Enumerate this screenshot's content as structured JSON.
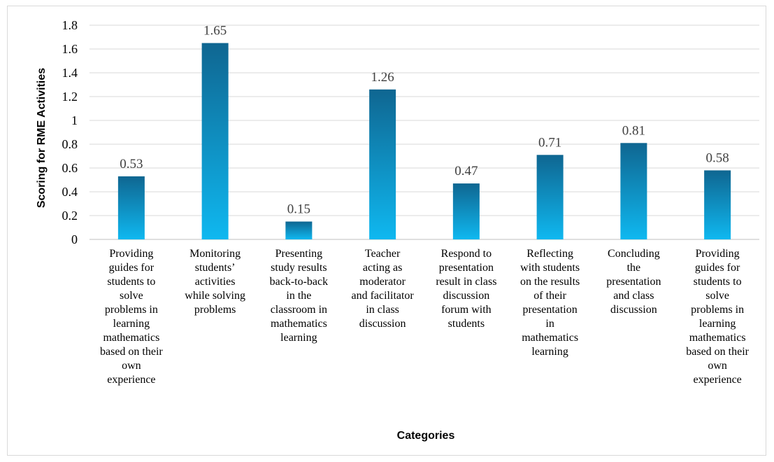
{
  "chart_data": {
    "type": "bar",
    "title": "",
    "xlabel": "Categories",
    "ylabel": "Scoring for RME Activities",
    "ylim": [
      0,
      1.8
    ],
    "yticks": [
      "0",
      "0.2",
      "0.4",
      "0.6",
      "0.8",
      "1",
      "1.2",
      "1.4",
      "1.6",
      "1.8"
    ],
    "grid": true,
    "legend": "none",
    "categories": [
      "Providing guides for students to solve problems in learning mathematics based on their own experience",
      "Monitoring students’ activities while solving problems",
      "Presenting study results back-to-back in the classroom in mathematics learning",
      "Teacher acting as moderator and facilitator in class discussion",
      "Respond to presentation result in class discussion forum with students",
      "Reflecting with students on the results of their presentation in mathematics learning",
      "Concluding the presentation and class discussion",
      "Providing guides for students to solve problems in learning mathematics based on their own experience"
    ],
    "category_lines": [
      [
        "Providing",
        "guides for",
        "students to",
        "solve",
        "problems in",
        "learning",
        "mathematics",
        "based on their",
        "own",
        "experience"
      ],
      [
        "Monitoring",
        "students’",
        "activities",
        "while solving",
        "problems"
      ],
      [
        "Presenting",
        "study results",
        "back-to-back",
        "in the",
        "classroom in",
        "mathematics",
        "learning"
      ],
      [
        "Teacher",
        "acting as",
        "moderator",
        "and facilitator",
        "in class",
        "discussion"
      ],
      [
        "Respond to",
        "presentation",
        "result in class",
        "discussion",
        "forum with",
        "students"
      ],
      [
        "Reflecting",
        "with students",
        "on the results",
        "of their",
        "presentation",
        "in",
        "mathematics",
        "learning"
      ],
      [
        "Concluding",
        "the",
        "presentation",
        "and class",
        "discussion"
      ],
      [
        "Providing",
        "guides for",
        "students to",
        "solve",
        "problems in",
        "learning",
        "mathematics",
        "based on their",
        "own",
        "experience"
      ]
    ],
    "values": [
      0.53,
      1.65,
      0.15,
      1.26,
      0.47,
      0.71,
      0.81,
      0.58
    ],
    "data_labels": [
      "0.53",
      "1.65",
      "0.15",
      "1.26",
      "0.47",
      "0.71",
      "0.81",
      "0.58"
    ],
    "colors": {
      "bar_top": "#0f6691",
      "bar_bottom": "#0fb8f0",
      "gridline": "#d9d9d9",
      "axis": "#bfbfbf"
    }
  }
}
